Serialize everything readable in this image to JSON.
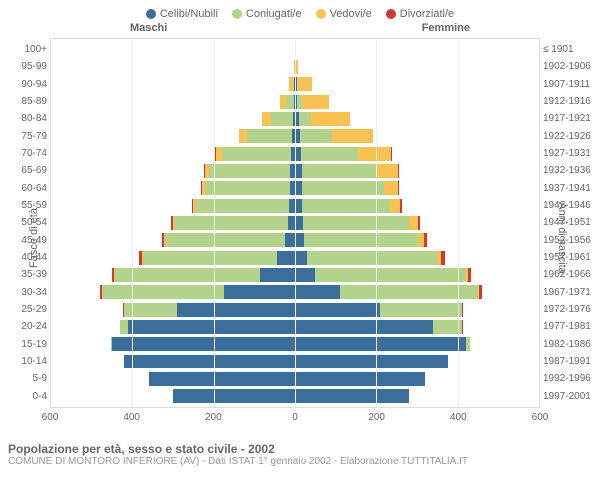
{
  "chart": {
    "type": "population-pyramid",
    "legend": [
      {
        "label": "Celibi/Nubili",
        "color": "#3b6e9a"
      },
      {
        "label": "Coniugati/e",
        "color": "#b3d38c"
      },
      {
        "label": "Vedovi/e",
        "color": "#f7c252"
      },
      {
        "label": "Divorziati/e",
        "color": "#d33a2f"
      }
    ],
    "gender_left": "Maschi",
    "gender_right": "Femmine",
    "ylabel_left": "Fasce di età",
    "ylabel_right": "Anni di nascita",
    "x_ticks": [
      600,
      400,
      200,
      0,
      200,
      400,
      600
    ],
    "x_max": 600,
    "colors": {
      "background": "#ffffff",
      "grid": "#eeeeee",
      "border": "#dddddd",
      "center_dash": "#bbbbbb",
      "text": "#666666"
    },
    "rows": [
      {
        "age": "100+",
        "birth": "≤ 1901",
        "m": {
          "single": 0,
          "married": 0,
          "widowed": 0,
          "divorced": 0
        },
        "f": {
          "single": 0,
          "married": 0,
          "widowed": 2,
          "divorced": 0
        }
      },
      {
        "age": "95-99",
        "birth": "1902-1906",
        "m": {
          "single": 0,
          "married": 0,
          "widowed": 3,
          "divorced": 0
        },
        "f": {
          "single": 0,
          "married": 0,
          "widowed": 8,
          "divorced": 0
        }
      },
      {
        "age": "90-94",
        "birth": "1907-1911",
        "m": {
          "single": 2,
          "married": 4,
          "widowed": 8,
          "divorced": 0
        },
        "f": {
          "single": 4,
          "married": 2,
          "widowed": 35,
          "divorced": 0
        }
      },
      {
        "age": "85-89",
        "birth": "1912-1916",
        "m": {
          "single": 3,
          "married": 20,
          "widowed": 15,
          "divorced": 0
        },
        "f": {
          "single": 6,
          "married": 12,
          "widowed": 65,
          "divorced": 0
        }
      },
      {
        "age": "80-84",
        "birth": "1917-1921",
        "m": {
          "single": 5,
          "married": 55,
          "widowed": 20,
          "divorced": 0
        },
        "f": {
          "single": 10,
          "married": 30,
          "widowed": 95,
          "divorced": 0
        }
      },
      {
        "age": "75-79",
        "birth": "1922-1926",
        "m": {
          "single": 8,
          "married": 110,
          "widowed": 20,
          "divorced": 0
        },
        "f": {
          "single": 12,
          "married": 80,
          "widowed": 100,
          "divorced": 0
        }
      },
      {
        "age": "70-74",
        "birth": "1927-1931",
        "m": {
          "single": 10,
          "married": 170,
          "widowed": 15,
          "divorced": 2
        },
        "f": {
          "single": 15,
          "married": 140,
          "widowed": 80,
          "divorced": 2
        }
      },
      {
        "age": "65-69",
        "birth": "1932-1936",
        "m": {
          "single": 12,
          "married": 200,
          "widowed": 10,
          "divorced": 3
        },
        "f": {
          "single": 18,
          "married": 180,
          "widowed": 55,
          "divorced": 3
        }
      },
      {
        "age": "60-64",
        "birth": "1937-1941",
        "m": {
          "single": 12,
          "married": 210,
          "widowed": 7,
          "divorced": 3
        },
        "f": {
          "single": 18,
          "married": 200,
          "widowed": 35,
          "divorced": 3
        }
      },
      {
        "age": "55-59",
        "birth": "1942-1946",
        "m": {
          "single": 15,
          "married": 230,
          "widowed": 5,
          "divorced": 3
        },
        "f": {
          "single": 18,
          "married": 215,
          "widowed": 25,
          "divorced": 4
        }
      },
      {
        "age": "50-54",
        "birth": "1947-1951",
        "m": {
          "single": 18,
          "married": 280,
          "widowed": 3,
          "divorced": 5
        },
        "f": {
          "single": 20,
          "married": 260,
          "widowed": 22,
          "divorced": 6
        }
      },
      {
        "age": "45-49",
        "birth": "1952-1956",
        "m": {
          "single": 25,
          "married": 295,
          "widowed": 2,
          "divorced": 6
        },
        "f": {
          "single": 22,
          "married": 280,
          "widowed": 15,
          "divorced": 8
        }
      },
      {
        "age": "40-44",
        "birth": "1957-1961",
        "m": {
          "single": 45,
          "married": 330,
          "widowed": 2,
          "divorced": 6
        },
        "f": {
          "single": 30,
          "married": 320,
          "widowed": 10,
          "divorced": 8
        }
      },
      {
        "age": "35-39",
        "birth": "1962-1966",
        "m": {
          "single": 85,
          "married": 360,
          "widowed": 1,
          "divorced": 5
        },
        "f": {
          "single": 50,
          "married": 370,
          "widowed": 6,
          "divorced": 8
        }
      },
      {
        "age": "30-34",
        "birth": "1967-1971",
        "m": {
          "single": 175,
          "married": 300,
          "widowed": 0,
          "divorced": 4
        },
        "f": {
          "single": 110,
          "married": 340,
          "widowed": 3,
          "divorced": 6
        }
      },
      {
        "age": "25-29",
        "birth": "1972-1976",
        "m": {
          "single": 290,
          "married": 130,
          "widowed": 0,
          "divorced": 2
        },
        "f": {
          "single": 210,
          "married": 200,
          "widowed": 1,
          "divorced": 3
        }
      },
      {
        "age": "20-24",
        "birth": "1977-1981",
        "m": {
          "single": 410,
          "married": 20,
          "widowed": 0,
          "divorced": 0
        },
        "f": {
          "single": 340,
          "married": 70,
          "widowed": 0,
          "divorced": 1
        }
      },
      {
        "age": "15-19",
        "birth": "1982-1986",
        "m": {
          "single": 450,
          "married": 2,
          "widowed": 0,
          "divorced": 0
        },
        "f": {
          "single": 420,
          "married": 10,
          "widowed": 0,
          "divorced": 0
        }
      },
      {
        "age": "10-14",
        "birth": "1987-1991",
        "m": {
          "single": 420,
          "married": 0,
          "widowed": 0,
          "divorced": 0
        },
        "f": {
          "single": 375,
          "married": 0,
          "widowed": 0,
          "divorced": 0
        }
      },
      {
        "age": "5-9",
        "birth": "1992-1996",
        "m": {
          "single": 360,
          "married": 0,
          "widowed": 0,
          "divorced": 0
        },
        "f": {
          "single": 320,
          "married": 0,
          "widowed": 0,
          "divorced": 0
        }
      },
      {
        "age": "0-4",
        "birth": "1997-2001",
        "m": {
          "single": 300,
          "married": 0,
          "widowed": 0,
          "divorced": 0
        },
        "f": {
          "single": 280,
          "married": 0,
          "widowed": 0,
          "divorced": 0
        }
      }
    ]
  },
  "footer": {
    "title": "Popolazione per età, sesso e stato civile - 2002",
    "subtitle": "COMUNE DI MONTORO INFERIORE (AV) - Dati ISTAT 1° gennaio 2002 - Elaborazione TUTTITALIA.IT"
  }
}
